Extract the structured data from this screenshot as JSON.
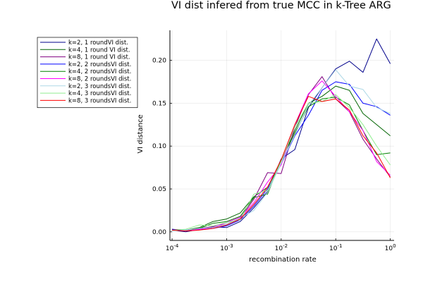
{
  "chart_data": {
    "type": "line",
    "title": "VI dist infered from true MCC in k-Tree ARG",
    "xlabel": "recombination rate",
    "ylabel": "VI distance",
    "xscale": "log10",
    "xlim": [
      0.0001,
      1
    ],
    "ylim": [
      -0.01,
      0.235
    ],
    "x_ticks": [
      0.0001,
      0.001,
      0.01,
      0.1,
      1
    ],
    "x_tick_labels": [
      {
        "base": "10",
        "exp": "-4"
      },
      {
        "base": "10",
        "exp": "-3"
      },
      {
        "base": "10",
        "exp": "-2"
      },
      {
        "base": "10",
        "exp": "-1"
      },
      {
        "base": "10",
        "exp": "0"
      }
    ],
    "y_ticks": [
      0.0,
      0.05,
      0.1,
      0.15,
      0.2
    ],
    "y_tick_labels": [
      "0.00",
      "0.05",
      "0.10",
      "0.15",
      "0.20"
    ],
    "grid": true,
    "legend_position": "outside-top-left",
    "x": [
      0.0001,
      0.000178,
      0.000316,
      0.000562,
      0.001,
      0.00178,
      0.00316,
      0.00562,
      0.01,
      0.0178,
      0.0316,
      0.0562,
      0.1,
      0.178,
      0.316,
      0.562,
      1.0
    ],
    "series": [
      {
        "name": "k=2, 1 roundVI dist.",
        "color": "#00008b",
        "values": [
          0.002,
          0.0,
          0.003,
          0.006,
          0.005,
          0.012,
          0.028,
          0.047,
          0.085,
          0.096,
          0.145,
          0.168,
          0.19,
          0.199,
          0.186,
          0.225,
          0.196
        ]
      },
      {
        "name": "k=4, 1 round VI dist.",
        "color": "#006400",
        "values": [
          0.003,
          0.002,
          0.005,
          0.012,
          0.015,
          0.022,
          0.041,
          0.052,
          0.082,
          0.118,
          0.15,
          0.158,
          0.17,
          0.165,
          0.138,
          0.125,
          0.112
        ]
      },
      {
        "name": "k=8, 1 round VI dist.",
        "color": "#800080",
        "values": [
          0.003,
          0.002,
          0.004,
          0.006,
          0.009,
          0.016,
          0.038,
          0.069,
          0.068,
          0.122,
          0.16,
          0.181,
          0.155,
          0.14,
          0.108,
          0.085,
          0.064
        ]
      },
      {
        "name": "k=2, 2 roundsVI dist.",
        "color": "#0000ff",
        "values": [
          0.003,
          0.001,
          0.003,
          0.004,
          0.007,
          0.014,
          0.03,
          0.05,
          0.079,
          0.112,
          0.136,
          0.165,
          0.175,
          0.172,
          0.15,
          0.146,
          0.136
        ]
      },
      {
        "name": "k=4, 2 roundsVI dist.",
        "color": "#008000",
        "values": [
          0.002,
          0.001,
          0.004,
          0.01,
          0.012,
          0.018,
          0.04,
          0.044,
          0.084,
          0.115,
          0.146,
          0.155,
          0.157,
          0.148,
          0.118,
          0.09,
          0.092
        ]
      },
      {
        "name": "k=8, 2 roundsVI dist.",
        "color": "#ff00ff",
        "values": [
          0.002,
          0.001,
          0.003,
          0.005,
          0.011,
          0.017,
          0.034,
          0.058,
          0.078,
          0.125,
          0.161,
          0.176,
          0.158,
          0.14,
          0.118,
          0.082,
          0.066
        ]
      },
      {
        "name": "k=2, 3 roundsVI dist.",
        "color": "#add8e6",
        "values": [
          0.001,
          0.002,
          0.004,
          0.005,
          0.009,
          0.016,
          0.025,
          0.046,
          0.08,
          0.113,
          0.148,
          0.168,
          0.189,
          0.17,
          0.166,
          0.145,
          0.138
        ]
      },
      {
        "name": "k=4, 3 roundsVI dist.",
        "color": "#90ee90",
        "values": [
          0.002,
          0.003,
          0.008,
          0.007,
          0.011,
          0.014,
          0.044,
          0.048,
          0.082,
          0.122,
          0.15,
          0.152,
          0.16,
          0.145,
          0.125,
          0.1,
          0.078
        ]
      },
      {
        "name": "k=8, 3 roundsVI dist.",
        "color": "#ff0000",
        "values": [
          0.002,
          0.001,
          0.002,
          0.004,
          0.008,
          0.015,
          0.032,
          0.052,
          0.084,
          0.125,
          0.158,
          0.152,
          0.155,
          0.142,
          0.112,
          0.092,
          0.063
        ]
      }
    ]
  }
}
